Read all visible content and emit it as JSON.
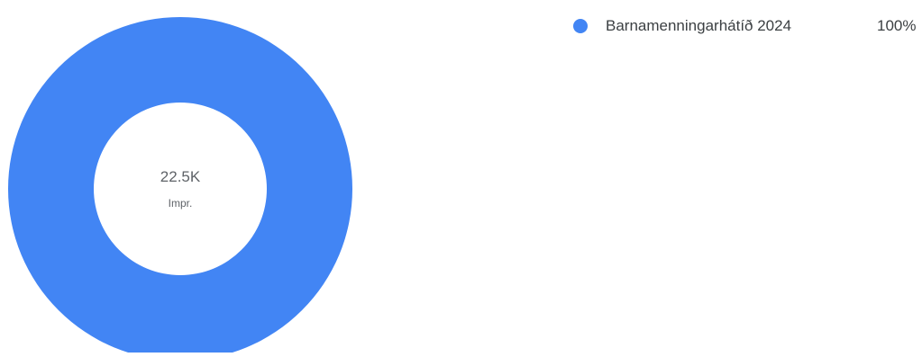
{
  "chart_data": {
    "type": "pie",
    "variant": "donut",
    "center_value": "22.5K",
    "center_label": "Impr.",
    "slices": [
      {
        "label": "Barnamenningarhátíð 2024",
        "percent": "100%",
        "value": 100,
        "color": "#4285f4"
      }
    ],
    "legend_position": "top-right"
  }
}
